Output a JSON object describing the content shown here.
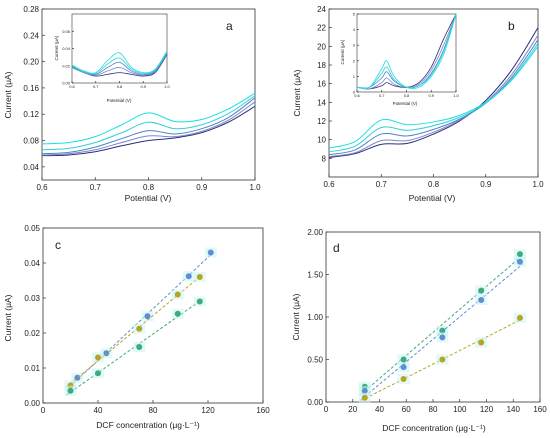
{
  "chart_data": [
    {
      "panel": "a",
      "type": "line",
      "xlabel": "Potential (V)",
      "ylabel": "Current (μA)",
      "xlim": [
        0.6,
        1.0
      ],
      "ylim": [
        0.02,
        0.28
      ],
      "xticks": [
        "0.6",
        "0.7",
        "0.8",
        "0.9",
        "1.0"
      ],
      "yticks": [
        "0.04",
        "0.08",
        "0.12",
        "0.16",
        "0.20",
        "0.24",
        "0.28"
      ],
      "series": [
        {
          "color": "#2a2f78",
          "x": [
            0.6,
            0.65,
            0.7,
            0.75,
            0.8,
            0.85,
            0.9,
            0.95,
            1.0
          ],
          "y": [
            0.057,
            0.058,
            0.063,
            0.072,
            0.08,
            0.084,
            0.092,
            0.108,
            0.132
          ]
        },
        {
          "color": "#7f86c9",
          "x": [
            0.6,
            0.65,
            0.7,
            0.75,
            0.8,
            0.85,
            0.9,
            0.95,
            1.0
          ],
          "y": [
            0.058,
            0.06,
            0.066,
            0.077,
            0.087,
            0.086,
            0.094,
            0.111,
            0.139
          ]
        },
        {
          "color": "#4d86c8",
          "x": [
            0.6,
            0.65,
            0.7,
            0.75,
            0.8,
            0.85,
            0.9,
            0.95,
            1.0
          ],
          "y": [
            0.06,
            0.062,
            0.07,
            0.083,
            0.095,
            0.09,
            0.098,
            0.115,
            0.145
          ]
        },
        {
          "color": "#33cfd6",
          "x": [
            0.6,
            0.65,
            0.7,
            0.75,
            0.8,
            0.85,
            0.9,
            0.95,
            1.0
          ],
          "y": [
            0.066,
            0.068,
            0.077,
            0.092,
            0.108,
            0.098,
            0.104,
            0.121,
            0.148
          ]
        },
        {
          "color": "#19e0e6",
          "x": [
            0.6,
            0.65,
            0.7,
            0.75,
            0.8,
            0.85,
            0.9,
            0.95,
            1.0
          ],
          "y": [
            0.075,
            0.077,
            0.086,
            0.104,
            0.122,
            0.109,
            0.112,
            0.128,
            0.152
          ]
        }
      ],
      "inset": {
        "xlabel": "Potential (V)",
        "ylabel": "Current (μA)",
        "xlim": [
          0.6,
          1.0
        ],
        "ylim": [
          0.0,
          0.08
        ],
        "xticks": [
          "0.6",
          "0.7",
          "0.8",
          "0.9",
          "1.0"
        ],
        "yticks": [
          "0.00",
          "0.02",
          "0.04",
          "0.06"
        ],
        "series": [
          {
            "color": "#2a2f78",
            "x": [
              0.6,
              0.65,
              0.7,
              0.75,
              0.8,
              0.85,
              0.9,
              0.95,
              1.0
            ],
            "y": [
              0.018,
              0.012,
              0.008,
              0.01,
              0.012,
              0.01,
              0.008,
              0.012,
              0.033
            ]
          },
          {
            "color": "#7f86c9",
            "x": [
              0.6,
              0.65,
              0.7,
              0.75,
              0.8,
              0.85,
              0.9,
              0.95,
              1.0
            ],
            "y": [
              0.018,
              0.012,
              0.009,
              0.014,
              0.018,
              0.012,
              0.009,
              0.013,
              0.034
            ]
          },
          {
            "color": "#4d86c8",
            "x": [
              0.6,
              0.65,
              0.7,
              0.75,
              0.8,
              0.85,
              0.9,
              0.95,
              1.0
            ],
            "y": [
              0.019,
              0.013,
              0.01,
              0.018,
              0.024,
              0.014,
              0.01,
              0.014,
              0.035
            ]
          },
          {
            "color": "#33cfd6",
            "x": [
              0.6,
              0.65,
              0.7,
              0.75,
              0.8,
              0.85,
              0.9,
              0.95,
              1.0
            ],
            "y": [
              0.02,
              0.013,
              0.011,
              0.022,
              0.029,
              0.016,
              0.011,
              0.015,
              0.036
            ]
          },
          {
            "color": "#19e0e6",
            "x": [
              0.6,
              0.65,
              0.7,
              0.75,
              0.8,
              0.85,
              0.9,
              0.95,
              1.0
            ],
            "y": [
              0.021,
              0.014,
              0.012,
              0.026,
              0.035,
              0.018,
              0.012,
              0.016,
              0.037
            ]
          }
        ]
      }
    },
    {
      "panel": "b",
      "type": "line",
      "xlabel": "Potential (V)",
      "ylabel": "Current (μA)",
      "xlim": [
        0.6,
        1.0
      ],
      "ylim": [
        6,
        24
      ],
      "xticks": [
        "0.6",
        "0.7",
        "0.8",
        "0.9",
        "1.0"
      ],
      "yticks": [
        "8",
        "10",
        "12",
        "14",
        "16",
        "18",
        "20",
        "22",
        "24"
      ],
      "series": [
        {
          "color": "#2a2f78",
          "x": [
            0.6,
            0.65,
            0.7,
            0.75,
            0.8,
            0.85,
            0.9,
            0.95,
            1.0
          ],
          "y": [
            8.1,
            8.5,
            9.5,
            9.6,
            10.6,
            12.0,
            14.2,
            17.5,
            22.0
          ]
        },
        {
          "color": "#7f86c9",
          "x": [
            0.6,
            0.65,
            0.7,
            0.75,
            0.8,
            0.85,
            0.9,
            0.95,
            1.0
          ],
          "y": [
            8.2,
            8.6,
            9.9,
            9.9,
            10.8,
            12.1,
            14.0,
            17.0,
            21.2
          ]
        },
        {
          "color": "#4d86c8",
          "x": [
            0.6,
            0.65,
            0.7,
            0.75,
            0.8,
            0.85,
            0.9,
            0.95,
            1.0
          ],
          "y": [
            8.4,
            8.9,
            10.6,
            10.4,
            11.1,
            12.2,
            13.9,
            16.7,
            20.7
          ]
        },
        {
          "color": "#33cfd6",
          "x": [
            0.6,
            0.65,
            0.7,
            0.75,
            0.8,
            0.85,
            0.9,
            0.95,
            1.0
          ],
          "y": [
            8.7,
            9.3,
            11.3,
            11.0,
            11.5,
            12.4,
            13.9,
            16.5,
            20.3
          ]
        },
        {
          "color": "#19e0e6",
          "x": [
            0.6,
            0.65,
            0.7,
            0.75,
            0.8,
            0.85,
            0.9,
            0.95,
            1.0
          ],
          "y": [
            9.1,
            9.8,
            12.1,
            11.6,
            11.9,
            12.6,
            14.0,
            16.4,
            20.0
          ]
        }
      ],
      "inset": {
        "xlabel": "Potential (V)",
        "ylabel": "Current (μA)",
        "xlim": [
          0.6,
          1.0
        ],
        "ylim": [
          0,
          5
        ],
        "xticks": [
          "0.6",
          "0.7",
          "0.8",
          "0.9",
          "1.0"
        ],
        "yticks": [
          "0",
          "1",
          "2",
          "3",
          "4",
          "5"
        ],
        "series": [
          {
            "color": "#2a2f78",
            "x": [
              0.6,
              0.65,
              0.7,
              0.72,
              0.75,
              0.8,
              0.85,
              0.9,
              0.95,
              1.0
            ],
            "y": [
              0.3,
              0.2,
              0.4,
              0.6,
              0.4,
              0.3,
              0.6,
              1.6,
              3.4,
              5.0
            ]
          },
          {
            "color": "#7f86c9",
            "x": [
              0.6,
              0.65,
              0.7,
              0.72,
              0.75,
              0.8,
              0.85,
              0.9,
              0.95,
              1.0
            ],
            "y": [
              0.3,
              0.2,
              0.6,
              0.9,
              0.5,
              0.3,
              0.5,
              1.4,
              3.0,
              5.0
            ]
          },
          {
            "color": "#4d86c8",
            "x": [
              0.6,
              0.65,
              0.7,
              0.72,
              0.75,
              0.8,
              0.85,
              0.9,
              0.95,
              1.0
            ],
            "y": [
              0.3,
              0.3,
              0.9,
              1.3,
              0.7,
              0.3,
              0.4,
              1.2,
              2.7,
              5.0
            ]
          },
          {
            "color": "#33cfd6",
            "x": [
              0.6,
              0.65,
              0.7,
              0.72,
              0.75,
              0.8,
              0.85,
              0.9,
              0.95,
              1.0
            ],
            "y": [
              0.3,
              0.3,
              1.2,
              1.6,
              0.8,
              0.3,
              0.4,
              1.1,
              2.6,
              5.0
            ]
          },
          {
            "color": "#19e0e6",
            "x": [
              0.6,
              0.65,
              0.7,
              0.72,
              0.75,
              0.8,
              0.85,
              0.9,
              0.95,
              1.0
            ],
            "y": [
              0.3,
              0.3,
              1.5,
              2.0,
              1.0,
              0.3,
              0.3,
              1.0,
              2.4,
              5.0
            ]
          }
        ]
      }
    },
    {
      "panel": "c",
      "type": "scatter",
      "xlabel": "DCF concentration (μg·L⁻¹)",
      "ylabel": "Current (μA)",
      "xlim": [
        0,
        160
      ],
      "ylim": [
        0,
        0.05
      ],
      "xticks": [
        "0",
        "40",
        "80",
        "120",
        "160"
      ],
      "yticks": [
        "0.00",
        "0.01",
        "0.02",
        "0.03",
        "0.04",
        "0.05"
      ],
      "series": [
        {
          "color": "#5b8fd6",
          "x": [
            25,
            46,
            76,
            106,
            122
          ],
          "y": [
            0.0072,
            0.0142,
            0.0248,
            0.0362,
            0.043
          ]
        },
        {
          "color": "#b9a422",
          "x": [
            20,
            40,
            70,
            98,
            114
          ],
          "y": [
            0.005,
            0.013,
            0.0212,
            0.031,
            0.036
          ]
        },
        {
          "color": "#3fa97f",
          "x": [
            20,
            40,
            70,
            98,
            114
          ],
          "y": [
            0.0035,
            0.0085,
            0.016,
            0.0255,
            0.029
          ]
        }
      ]
    },
    {
      "panel": "d",
      "type": "scatter",
      "xlabel": "DCF concentration (μg·L⁻¹)",
      "ylabel": "Current (μA)",
      "xlim": [
        0,
        160
      ],
      "ylim": [
        0,
        2.0
      ],
      "xticks": [
        "0",
        "20",
        "40",
        "60",
        "80",
        "100",
        "120",
        "140",
        "160"
      ],
      "yticks": [
        "0.00",
        "0.50",
        "1.00",
        "1.50",
        "2.00"
      ],
      "series": [
        {
          "color": "#3fa97f",
          "x": [
            29,
            58,
            87,
            116,
            145
          ],
          "y": [
            0.18,
            0.5,
            0.84,
            1.31,
            1.74
          ]
        },
        {
          "color": "#5b8fd6",
          "x": [
            29,
            58,
            87,
            116,
            145
          ],
          "y": [
            0.13,
            0.41,
            0.76,
            1.2,
            1.65
          ]
        },
        {
          "color": "#b9a422",
          "x": [
            29,
            58,
            87,
            116,
            145
          ],
          "y": [
            0.05,
            0.27,
            0.5,
            0.7,
            0.99
          ]
        }
      ]
    }
  ],
  "labels": {
    "a": "a",
    "b": "b",
    "c": "c",
    "d": "d"
  }
}
